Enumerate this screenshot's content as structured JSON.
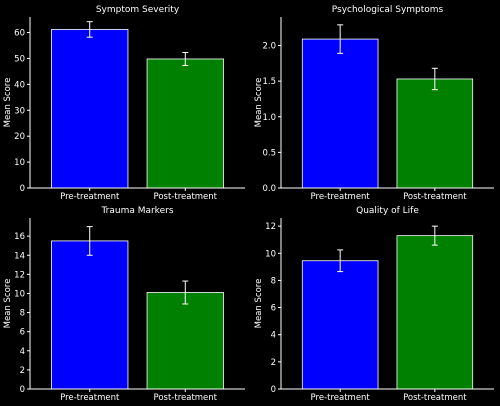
{
  "theme": {
    "background": "#000000",
    "foreground": "#ffffff"
  },
  "chart_data": [
    {
      "type": "bar",
      "title": "Symptom Severity",
      "ylabel": "Mean Score",
      "categories": [
        "Pre-treatment",
        "Post-treatment"
      ],
      "values": [
        61.2,
        49.8
      ],
      "errors": [
        3.0,
        2.5
      ],
      "colors": [
        "#0000ff",
        "#008000"
      ],
      "ylim": [
        0,
        66
      ],
      "yticks": [
        0,
        10,
        20,
        30,
        40,
        50,
        60
      ],
      "tick_decimals": 0,
      "grid": false
    },
    {
      "type": "bar",
      "title": "Psychological Symptoms",
      "ylabel": "Mean Score",
      "categories": [
        "Pre-treatment",
        "Post-treatment"
      ],
      "values": [
        2.09,
        1.53
      ],
      "errors": [
        0.2,
        0.15
      ],
      "colors": [
        "#0000ff",
        "#008000"
      ],
      "ylim": [
        0,
        2.4
      ],
      "yticks": [
        0.0,
        0.5,
        1.0,
        1.5,
        2.0
      ],
      "tick_decimals": 1,
      "grid": false
    },
    {
      "type": "bar",
      "title": "Trauma Markers",
      "ylabel": "Mean Score",
      "categories": [
        "Pre-treatment",
        "Post-treatment"
      ],
      "values": [
        15.5,
        10.1
      ],
      "errors": [
        1.5,
        1.2
      ],
      "colors": [
        "#0000ff",
        "#008000"
      ],
      "ylim": [
        0,
        17.9
      ],
      "yticks": [
        0,
        2,
        4,
        6,
        8,
        10,
        12,
        14,
        16
      ],
      "tick_decimals": 0,
      "grid": false
    },
    {
      "type": "bar",
      "title": "Quality of Life",
      "ylabel": "Mean Score",
      "categories": [
        "Pre-treatment",
        "Post-treatment"
      ],
      "values": [
        9.45,
        11.3
      ],
      "errors": [
        0.8,
        0.7
      ],
      "colors": [
        "#0000ff",
        "#008000"
      ],
      "ylim": [
        0,
        12.6
      ],
      "yticks": [
        0,
        2,
        4,
        6,
        8,
        10,
        12
      ],
      "tick_decimals": 0,
      "grid": false
    }
  ]
}
